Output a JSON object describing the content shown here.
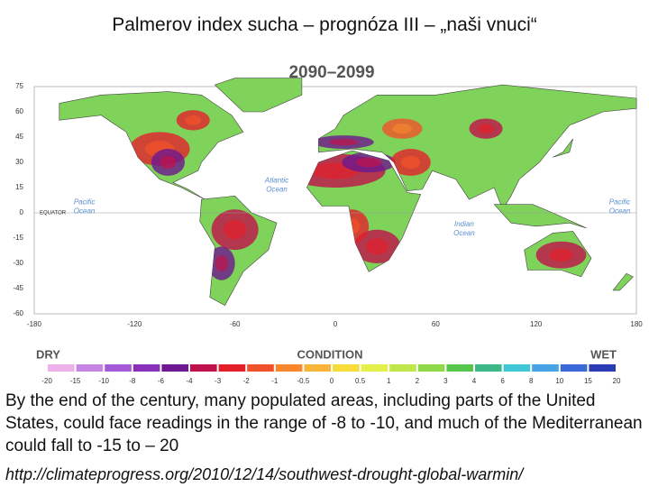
{
  "slide": {
    "title": "Palmerov index sucha – prognóza III – „naši vnuci“",
    "map": {
      "title": "2090–2099",
      "lat_ticks": [
        75,
        60,
        45,
        30,
        15,
        0,
        -15,
        -30,
        -45,
        -60
      ],
      "lon_ticks": [
        -180,
        -120,
        -60,
        0,
        60,
        120,
        180
      ],
      "equator_label": "EQUATOR",
      "oceans": [
        {
          "name": "Atlantic Ocean",
          "lines": [
            "Atlantic",
            "Ocean"
          ]
        },
        {
          "name": "Pacific Ocean west",
          "lines": [
            "Pacific",
            "Ocean"
          ]
        },
        {
          "name": "Pacific Ocean east",
          "lines": [
            "Pacific",
            "Ocean"
          ]
        },
        {
          "name": "Indian Ocean",
          "lines": [
            "Indian",
            "Ocean"
          ]
        }
      ]
    },
    "legend": {
      "dry": "DRY",
      "condition": "CONDITION",
      "wet": "WET",
      "ticks": [
        -20,
        -15,
        -10,
        -8,
        -6,
        -4,
        -3,
        -2,
        -1,
        -0.5,
        0,
        0.5,
        1,
        2,
        3,
        4,
        6,
        8,
        10,
        15,
        20
      ],
      "colors": [
        "#eeb0ea",
        "#c686e6",
        "#a55ad8",
        "#8a2fb8",
        "#6d1890",
        "#c0124a",
        "#e3202a",
        "#f2522a",
        "#f7862d",
        "#f9b43a",
        "#f8dc3c",
        "#e4ef48",
        "#bfe64a",
        "#8fd84a",
        "#56c54c",
        "#3cb88a",
        "#40c6d6",
        "#4aa2e6",
        "#3a6ad8",
        "#2a3cb4"
      ]
    },
    "body": "By the end of the century, many populated areas, including parts of the United States, could face readings in the range of -8 to -10, and much of the Mediterranean could fall to -15 to – 20",
    "source": "http://climateprogress.org/2010/12/14/southwest-drought-global-warmin/"
  }
}
